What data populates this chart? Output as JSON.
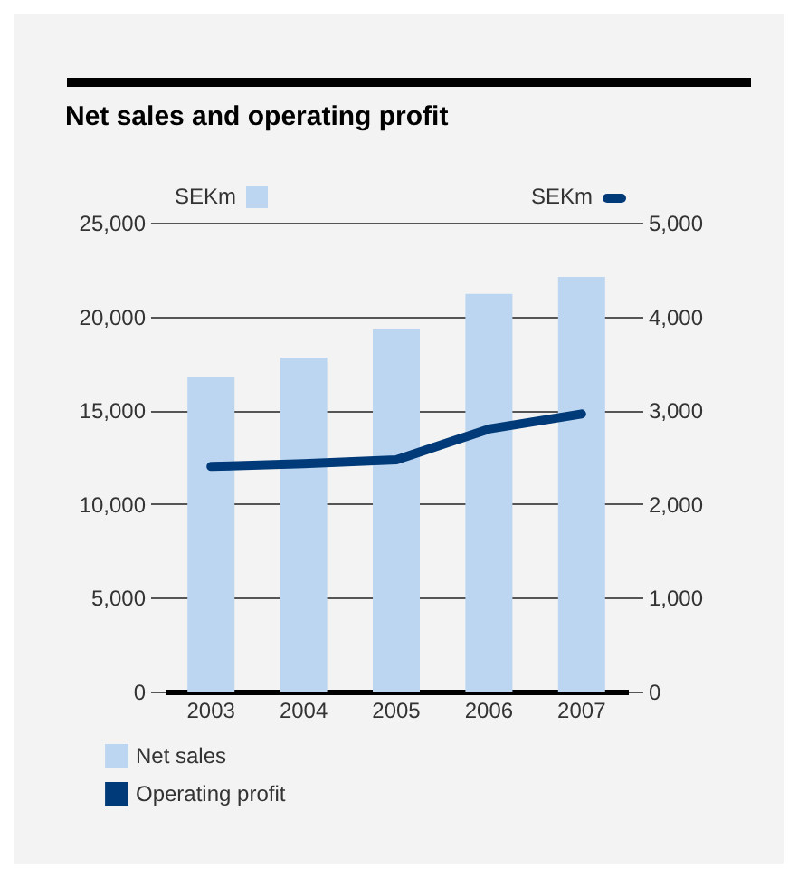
{
  "chart_data": {
    "type": "bar",
    "title": "Net sales and operating profit",
    "ylabel": "SEKm",
    "y2label": "SEKm",
    "categories": [
      "2003",
      "2004",
      "2005",
      "2006",
      "2007"
    ],
    "series": [
      {
        "name": "Net sales",
        "color": "#bcd5f0",
        "values": [
          16800,
          17800,
          19300,
          21200,
          22100
        ]
      },
      {
        "name": "Operating profit",
        "type": "line",
        "axis": "y2",
        "color": "#003a78",
        "values": [
          2400,
          2430,
          2470,
          2800,
          2960
        ]
      }
    ],
    "ylim": [
      0,
      25000
    ],
    "yticks": [
      0,
      {
        "value": 5000,
        "label": "5,000"
      },
      {
        "value": 10000,
        "label": "10,000"
      },
      {
        "value": 15000,
        "label": "15,000"
      },
      {
        "value": 20000,
        "label": "20,000"
      },
      {
        "value": 25000,
        "label": "25,000"
      }
    ],
    "y2lim": [
      0,
      5000
    ],
    "y2ticks": [
      0,
      {
        "value": 1000,
        "label": "1,000"
      },
      {
        "value": 2000,
        "label": "2,000"
      },
      {
        "value": 3000,
        "label": "3,000"
      },
      {
        "value": 4000,
        "label": "4,000"
      },
      {
        "value": 5000,
        "label": "5,000"
      }
    ],
    "grid": "y",
    "legend": "bottom left"
  }
}
